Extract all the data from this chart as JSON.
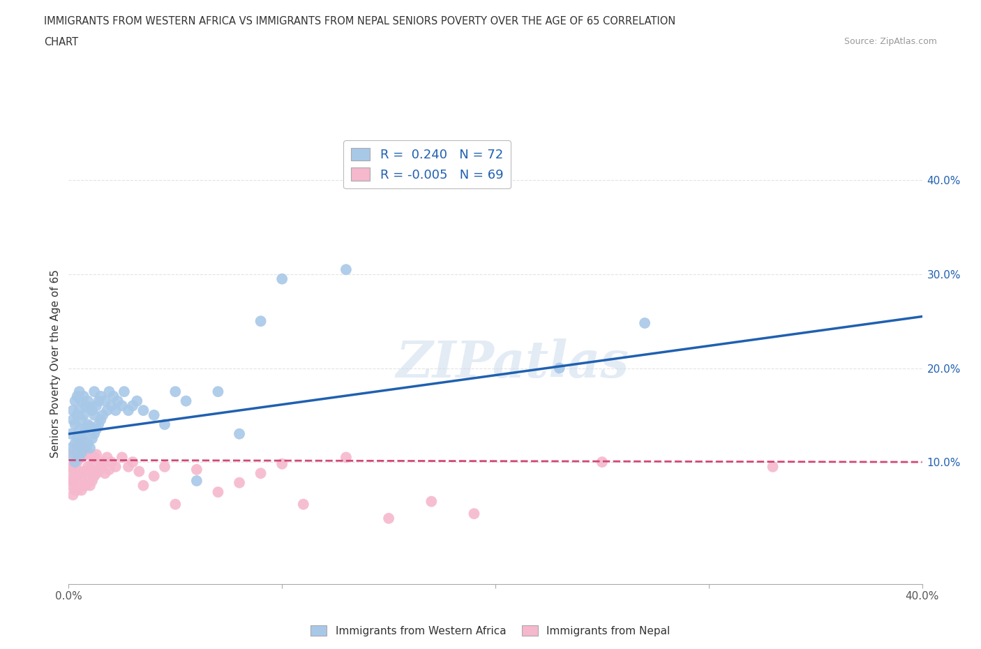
{
  "title_line1": "IMMIGRANTS FROM WESTERN AFRICA VS IMMIGRANTS FROM NEPAL SENIORS POVERTY OVER THE AGE OF 65 CORRELATION",
  "title_line2": "CHART",
  "source_text": "Source: ZipAtlas.com",
  "ylabel": "Seniors Poverty Over the Age of 65",
  "xlim": [
    0.0,
    0.4
  ],
  "ylim": [
    -0.03,
    0.44
  ],
  "ytick_positions": [
    0.1,
    0.2,
    0.3,
    0.4
  ],
  "ytick_labels": [
    "10.0%",
    "20.0%",
    "30.0%",
    "40.0%"
  ],
  "xtick_positions": [
    0.0,
    0.1,
    0.2,
    0.3,
    0.4
  ],
  "xtick_labels": [
    "0.0%",
    "",
    "",
    "",
    "40.0%"
  ],
  "r_blue": 0.24,
  "n_blue": 72,
  "r_pink": -0.005,
  "n_pink": 69,
  "blue_scatter_color": "#a8c8e8",
  "pink_scatter_color": "#f5b8cc",
  "blue_line_color": "#2060b0",
  "pink_line_color": "#d04878",
  "grid_color": "#dddddd",
  "watermark": "ZIPatlas",
  "legend_blue_label": "Immigrants from Western Africa",
  "legend_pink_label": "Immigrants from Nepal",
  "bg_color": "#ffffff",
  "blue_trend_x0": 0.0,
  "blue_trend_y0": 0.13,
  "blue_trend_x1": 0.4,
  "blue_trend_y1": 0.255,
  "pink_trend_x0": 0.0,
  "pink_trend_y0": 0.102,
  "pink_trend_x1": 0.4,
  "pink_trend_y1": 0.1,
  "blue_scatter_x": [
    0.001,
    0.001,
    0.002,
    0.002,
    0.002,
    0.003,
    0.003,
    0.003,
    0.003,
    0.004,
    0.004,
    0.004,
    0.004,
    0.005,
    0.005,
    0.005,
    0.005,
    0.005,
    0.006,
    0.006,
    0.006,
    0.006,
    0.007,
    0.007,
    0.007,
    0.007,
    0.008,
    0.008,
    0.008,
    0.009,
    0.009,
    0.009,
    0.01,
    0.01,
    0.01,
    0.011,
    0.011,
    0.012,
    0.012,
    0.012,
    0.013,
    0.013,
    0.014,
    0.014,
    0.015,
    0.015,
    0.016,
    0.017,
    0.018,
    0.019,
    0.02,
    0.021,
    0.022,
    0.023,
    0.025,
    0.026,
    0.028,
    0.03,
    0.032,
    0.035,
    0.04,
    0.045,
    0.05,
    0.055,
    0.06,
    0.07,
    0.08,
    0.09,
    0.1,
    0.13,
    0.23,
    0.27
  ],
  "blue_scatter_y": [
    0.115,
    0.13,
    0.105,
    0.145,
    0.155,
    0.1,
    0.12,
    0.14,
    0.165,
    0.11,
    0.125,
    0.15,
    0.17,
    0.105,
    0.118,
    0.135,
    0.155,
    0.175,
    0.11,
    0.125,
    0.145,
    0.165,
    0.115,
    0.13,
    0.15,
    0.17,
    0.115,
    0.135,
    0.16,
    0.12,
    0.14,
    0.165,
    0.115,
    0.138,
    0.158,
    0.125,
    0.155,
    0.13,
    0.15,
    0.175,
    0.135,
    0.16,
    0.14,
    0.165,
    0.145,
    0.17,
    0.15,
    0.165,
    0.155,
    0.175,
    0.16,
    0.17,
    0.155,
    0.165,
    0.16,
    0.175,
    0.155,
    0.16,
    0.165,
    0.155,
    0.15,
    0.14,
    0.175,
    0.165,
    0.08,
    0.175,
    0.13,
    0.25,
    0.295,
    0.305,
    0.2,
    0.248
  ],
  "pink_scatter_x": [
    0.001,
    0.001,
    0.001,
    0.002,
    0.002,
    0.002,
    0.002,
    0.003,
    0.003,
    0.003,
    0.003,
    0.004,
    0.004,
    0.004,
    0.004,
    0.005,
    0.005,
    0.005,
    0.005,
    0.006,
    0.006,
    0.006,
    0.007,
    0.007,
    0.007,
    0.007,
    0.008,
    0.008,
    0.008,
    0.009,
    0.009,
    0.009,
    0.01,
    0.01,
    0.01,
    0.011,
    0.011,
    0.012,
    0.012,
    0.013,
    0.013,
    0.014,
    0.015,
    0.016,
    0.017,
    0.018,
    0.019,
    0.02,
    0.022,
    0.025,
    0.028,
    0.03,
    0.033,
    0.035,
    0.04,
    0.045,
    0.05,
    0.06,
    0.07,
    0.08,
    0.09,
    0.1,
    0.11,
    0.13,
    0.15,
    0.17,
    0.19,
    0.25,
    0.33
  ],
  "pink_scatter_y": [
    0.075,
    0.085,
    0.095,
    0.065,
    0.08,
    0.095,
    0.11,
    0.07,
    0.085,
    0.1,
    0.115,
    0.07,
    0.085,
    0.1,
    0.115,
    0.075,
    0.09,
    0.105,
    0.12,
    0.07,
    0.085,
    0.105,
    0.075,
    0.09,
    0.108,
    0.12,
    0.075,
    0.09,
    0.108,
    0.08,
    0.095,
    0.11,
    0.075,
    0.092,
    0.108,
    0.08,
    0.098,
    0.085,
    0.105,
    0.088,
    0.108,
    0.09,
    0.095,
    0.1,
    0.088,
    0.105,
    0.092,
    0.1,
    0.095,
    0.105,
    0.095,
    0.1,
    0.09,
    0.075,
    0.085,
    0.095,
    0.055,
    0.092,
    0.068,
    0.078,
    0.088,
    0.098,
    0.055,
    0.105,
    0.04,
    0.058,
    0.045,
    0.1,
    0.095
  ]
}
